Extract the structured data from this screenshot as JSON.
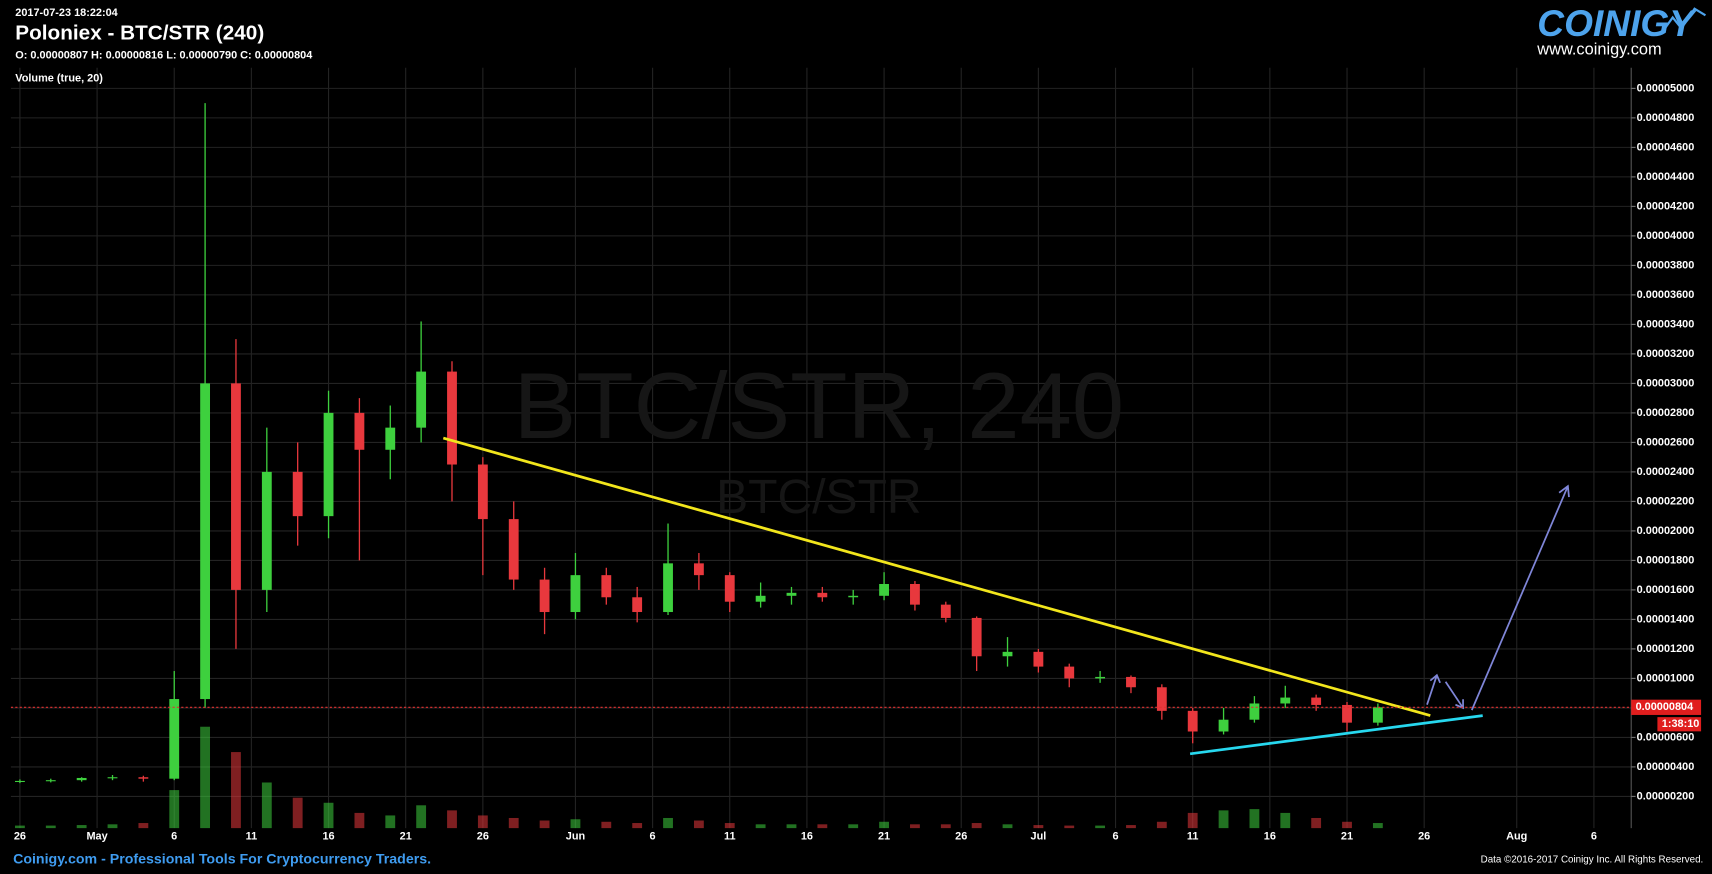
{
  "header": {
    "timestamp": "2017-07-23 18:22:04",
    "title": "Poloniex - BTC/STR (240)",
    "ohlc": "O: 0.00000807 H: 0.00000816 L: 0.00000790 C: 0.00000804",
    "indicator": "Volume (true, 20)",
    "logo": "COINIGY",
    "logo_url": "www.coinigy.com"
  },
  "footer": {
    "left": "Coinigy.com - Professional Tools For Cryptocurrency Traders.",
    "right": "Data ©2016-2017 Coinigy Inc. All Rights Reserved."
  },
  "chart_data": {
    "type": "candlestick",
    "watermark": "BTC/STR, 240",
    "watermark_sub": "BTC/STR",
    "current_price": 8.04e-06,
    "countdown": "1:38:10",
    "up_color": "#3ed03e",
    "down_color": "#e8383d",
    "grid": true,
    "x": [
      "2017-04-26",
      "2017-04-28",
      "2017-04-30",
      "2017-05-02",
      "2017-05-04",
      "2017-05-06",
      "2017-05-08",
      "2017-05-10",
      "2017-05-12",
      "2017-05-14",
      "2017-05-16",
      "2017-05-18",
      "2017-05-20",
      "2017-05-22",
      "2017-05-24",
      "2017-05-26",
      "2017-05-28",
      "2017-05-30",
      "2017-06-01",
      "2017-06-03",
      "2017-06-05",
      "2017-06-07",
      "2017-06-09",
      "2017-06-11",
      "2017-06-13",
      "2017-06-15",
      "2017-06-17",
      "2017-06-19",
      "2017-06-21",
      "2017-06-23",
      "2017-06-25",
      "2017-06-27",
      "2017-06-29",
      "2017-07-01",
      "2017-07-03",
      "2017-07-05",
      "2017-07-07",
      "2017-07-09",
      "2017-07-11",
      "2017-07-13",
      "2017-07-15",
      "2017-07-17",
      "2017-07-19",
      "2017-07-21",
      "2017-07-23"
    ],
    "open": [
      3e-06,
      3.05e-06,
      3.1e-06,
      3.25e-06,
      3.3e-06,
      3.2e-06,
      8.6e-06,
      3e-05,
      1.6e-05,
      2.4e-05,
      2.1e-05,
      2.8e-05,
      2.55e-05,
      2.7e-05,
      3.08e-05,
      2.45e-05,
      2.08e-05,
      1.67e-05,
      1.45e-05,
      1.7e-05,
      1.55e-05,
      1.45e-05,
      1.78e-05,
      1.7e-05,
      1.52e-05,
      1.56e-05,
      1.58e-05,
      1.55e-05,
      1.56e-05,
      1.64e-05,
      1.5e-05,
      1.41e-05,
      1.15e-05,
      1.18e-05,
      1.08e-05,
      1e-05,
      1.01e-05,
      9.4e-06,
      7.8e-06,
      6.4e-06,
      7.2e-06,
      8.3e-06,
      8.7e-06,
      8.2e-06,
      7e-06
    ],
    "high": [
      3.15e-06,
      3.2e-06,
      3.3e-06,
      3.45e-06,
      3.4e-06,
      1.05e-05,
      4.9e-05,
      3.3e-05,
      2.7e-05,
      2.6e-05,
      2.95e-05,
      2.9e-05,
      2.85e-05,
      3.42e-05,
      3.15e-05,
      2.5e-05,
      2.2e-05,
      1.75e-05,
      1.85e-05,
      1.75e-05,
      1.62e-05,
      2.05e-05,
      1.85e-05,
      1.72e-05,
      1.65e-05,
      1.62e-05,
      1.62e-05,
      1.6e-05,
      1.72e-05,
      1.66e-05,
      1.52e-05,
      1.42e-05,
      1.28e-05,
      1.2e-05,
      1.1e-05,
      1.05e-05,
      1.02e-05,
      9.6e-06,
      8e-06,
      8e-06,
      8.8e-06,
      9.5e-06,
      8.9e-06,
      8.4e-06,
      8.3e-06
    ],
    "low": [
      2.9e-06,
      2.95e-06,
      3e-06,
      3.1e-06,
      3e-06,
      3.1e-06,
      8e-06,
      1.2e-05,
      1.45e-05,
      1.9e-05,
      1.95e-05,
      1.8e-05,
      2.35e-05,
      2.6e-05,
      2.2e-05,
      1.7e-05,
      1.6e-05,
      1.3e-05,
      1.4e-05,
      1.5e-05,
      1.38e-05,
      1.43e-05,
      1.6e-05,
      1.45e-05,
      1.48e-05,
      1.5e-05,
      1.52e-05,
      1.5e-05,
      1.53e-05,
      1.46e-05,
      1.38e-05,
      1.05e-05,
      1.08e-05,
      1.04e-05,
      9.4e-06,
      9.7e-06,
      9e-06,
      7.2e-06,
      5.6e-06,
      6.2e-06,
      7e-06,
      8e-06,
      7.8e-06,
      6.4e-06,
      6.8e-06
    ],
    "close": [
      3.05e-06,
      3.1e-06,
      3.25e-06,
      3.3e-06,
      3.2e-06,
      8.6e-06,
      3e-05,
      1.6e-05,
      2.4e-05,
      2.1e-05,
      2.8e-05,
      2.55e-05,
      2.7e-05,
      3.08e-05,
      2.45e-05,
      2.08e-05,
      1.67e-05,
      1.45e-05,
      1.7e-05,
      1.55e-05,
      1.45e-05,
      1.78e-05,
      1.7e-05,
      1.52e-05,
      1.56e-05,
      1.58e-05,
      1.55e-05,
      1.56e-05,
      1.64e-05,
      1.5e-05,
      1.41e-05,
      1.15e-05,
      1.18e-05,
      1.08e-05,
      1e-05,
      1.01e-05,
      9.4e-06,
      7.8e-06,
      6.4e-06,
      7.2e-06,
      8.3e-06,
      8.7e-06,
      8.2e-06,
      7e-06,
      8.04e-06
    ],
    "volume": [
      10,
      10,
      12,
      15,
      20,
      150,
      400,
      300,
      180,
      120,
      100,
      60,
      50,
      90,
      70,
      50,
      40,
      30,
      35,
      25,
      20,
      40,
      30,
      20,
      15,
      15,
      15,
      15,
      25,
      15,
      15,
      20,
      15,
      12,
      10,
      10,
      12,
      25,
      60,
      70,
      75,
      60,
      40,
      25,
      20
    ],
    "xlim": [
      "2017-04-25T10:00:00Z",
      "2017-08-08T10:00:00Z"
    ],
    "xticks": [
      {
        "value": "2017-04-26",
        "label": "26"
      },
      {
        "value": "2017-05-01",
        "label": "May"
      },
      {
        "value": "2017-05-06",
        "label": "6"
      },
      {
        "value": "2017-05-11",
        "label": "11"
      },
      {
        "value": "2017-05-16",
        "label": "16"
      },
      {
        "value": "2017-05-21",
        "label": "21"
      },
      {
        "value": "2017-05-26",
        "label": "26"
      },
      {
        "value": "2017-06-01",
        "label": "Jun"
      },
      {
        "value": "2017-06-06",
        "label": "6"
      },
      {
        "value": "2017-06-11",
        "label": "11"
      },
      {
        "value": "2017-06-16",
        "label": "16"
      },
      {
        "value": "2017-06-21",
        "label": "21"
      },
      {
        "value": "2017-06-26",
        "label": "26"
      },
      {
        "value": "2017-07-01",
        "label": "Jul"
      },
      {
        "value": "2017-07-06",
        "label": "6"
      },
      {
        "value": "2017-07-11",
        "label": "11"
      },
      {
        "value": "2017-07-16",
        "label": "16"
      },
      {
        "value": "2017-07-21",
        "label": "21"
      },
      {
        "value": "2017-07-26",
        "label": "26"
      },
      {
        "value": "2017-08-01",
        "label": "Aug"
      },
      {
        "value": "2017-08-06",
        "label": "6"
      }
    ],
    "ylim": [
      -1.5e-07,
      5.14e-05
    ],
    "yticks": [
      {
        "value": 2e-06,
        "label": "0.00000200"
      },
      {
        "value": 4e-06,
        "label": "0.00000400"
      },
      {
        "value": 6e-06,
        "label": "0.00000600"
      },
      {
        "value": 8e-06,
        "label": "0.00000800"
      },
      {
        "value": 1e-05,
        "label": "0.00001000"
      },
      {
        "value": 1.2e-05,
        "label": "0.00001200"
      },
      {
        "value": 1.4e-05,
        "label": "0.00001400"
      },
      {
        "value": 1.6e-05,
        "label": "0.00001600"
      },
      {
        "value": 1.8e-05,
        "label": "0.00001800"
      },
      {
        "value": 2e-05,
        "label": "0.00002000"
      },
      {
        "value": 2.2e-05,
        "label": "0.00002200"
      },
      {
        "value": 2.4e-05,
        "label": "0.00002400"
      },
      {
        "value": 2.6e-05,
        "label": "0.00002600"
      },
      {
        "value": 2.8e-05,
        "label": "0.00002800"
      },
      {
        "value": 3e-05,
        "label": "0.00003000"
      },
      {
        "value": 3.2e-05,
        "label": "0.00003200"
      },
      {
        "value": 3.4e-05,
        "label": "0.00003400"
      },
      {
        "value": 3.6e-05,
        "label": "0.00003600"
      },
      {
        "value": 3.8e-05,
        "label": "0.00003800"
      },
      {
        "value": 4e-05,
        "label": "0.00004000"
      },
      {
        "value": 4.2e-05,
        "label": "0.00004200"
      },
      {
        "value": 4.4e-05,
        "label": "0.00004400"
      },
      {
        "value": 4.6e-05,
        "label": "0.00004600"
      },
      {
        "value": 4.8e-05,
        "label": "0.00004800"
      },
      {
        "value": 5e-05,
        "label": "0.00005000"
      }
    ],
    "y2lim": [
      0,
      3000
    ]
  }
}
